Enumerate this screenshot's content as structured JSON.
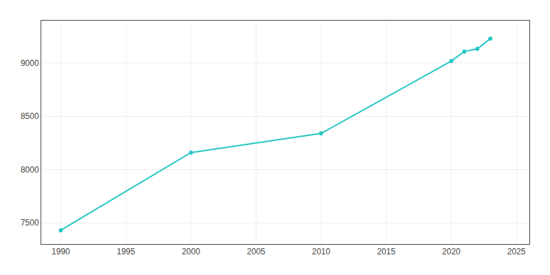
{
  "chart_data": {
    "type": "line",
    "x": [
      1990,
      2000,
      2010,
      2020,
      2021,
      2022,
      2023
    ],
    "values": [
      7430,
      8160,
      8340,
      9020,
      9110,
      9135,
      9230
    ],
    "color": "#26c6c6",
    "marker": "circle",
    "xlim": [
      1988.5,
      2026
    ],
    "ylim": [
      7300,
      9400
    ],
    "xticks": [
      1990,
      1995,
      2000,
      2005,
      2010,
      2015,
      2020,
      2025
    ],
    "yticks": [
      7500,
      8000,
      8500,
      9000
    ],
    "grid": true
  }
}
